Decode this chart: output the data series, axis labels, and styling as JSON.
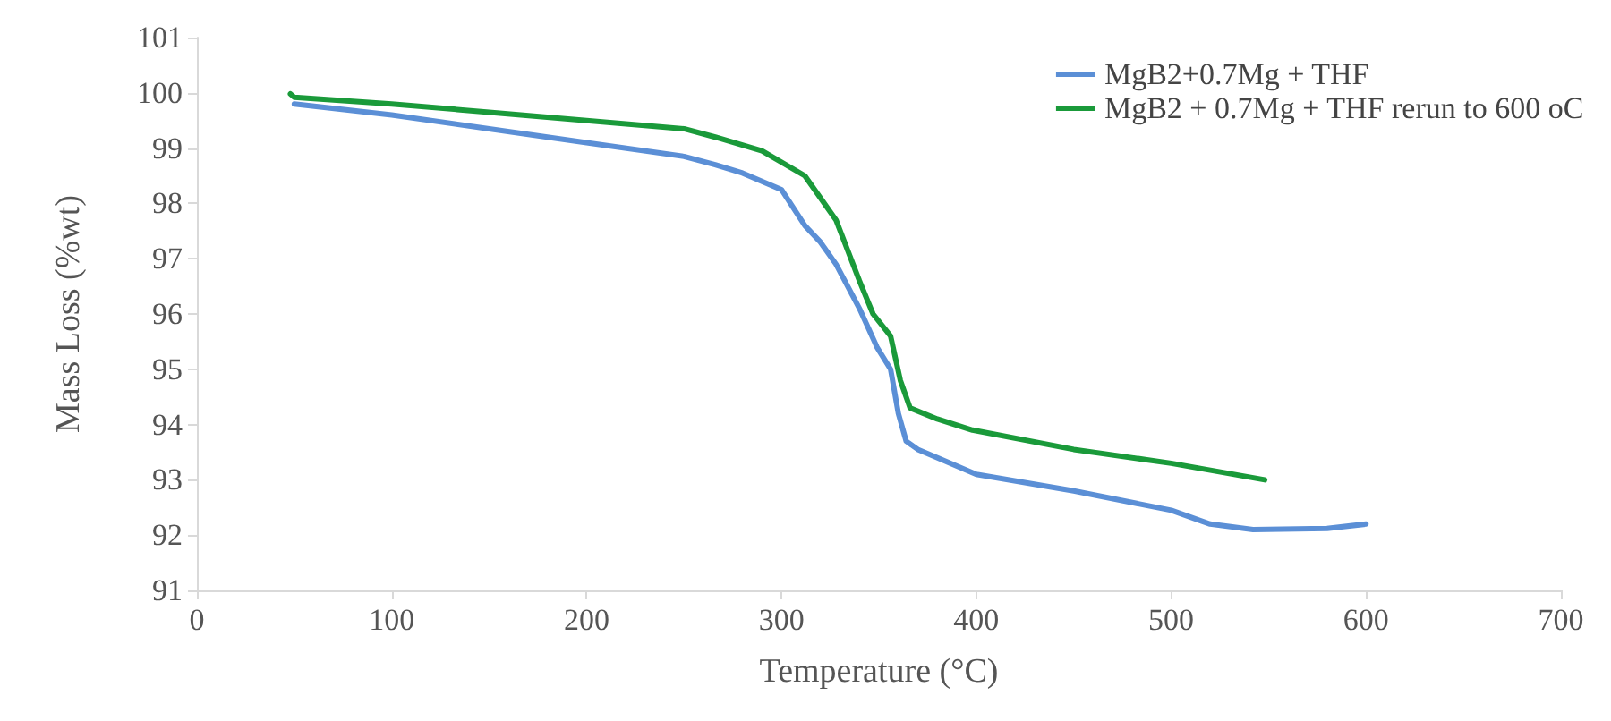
{
  "chart_data": {
    "type": "line",
    "xlabel": "Temperature (°C)",
    "ylabel": "Mass Loss (%wt)",
    "xlim": [
      0,
      700
    ],
    "xticks": [
      0,
      100,
      200,
      300,
      400,
      500,
      600,
      700
    ],
    "ylim": [
      91,
      101
    ],
    "yticks": [
      91,
      92,
      93,
      94,
      95,
      96,
      97,
      98,
      99,
      100,
      101
    ],
    "grid": false,
    "legend": "top right",
    "marker": "none",
    "line_style": "solid",
    "series": [
      {
        "name": "MgB2+0.7Mg + THF",
        "color": "#5b8fd6",
        "x": [
          50,
          100,
          150,
          200,
          250,
          266,
          280,
          300,
          312,
          320,
          328,
          340,
          349,
          356,
          360,
          364,
          370,
          400,
          450,
          500,
          520,
          542,
          580,
          600
        ],
        "values": [
          99.8,
          99.6,
          99.35,
          99.1,
          98.85,
          98.7,
          98.55,
          98.25,
          97.6,
          97.3,
          96.9,
          96.1,
          95.4,
          95.0,
          94.2,
          93.7,
          93.55,
          93.1,
          92.8,
          92.45,
          92.2,
          92.1,
          92.12,
          92.2
        ]
      },
      {
        "name": "MgB2 + 0.7Mg + THF rerun to 600 oC",
        "color": "#1a9a3a",
        "x": [
          48,
          50,
          100,
          150,
          200,
          250,
          266,
          290,
          312,
          328,
          340,
          347,
          356,
          361,
          366,
          380,
          398,
          450,
          500,
          548
        ],
        "values": [
          99.98,
          99.92,
          99.8,
          99.65,
          99.5,
          99.35,
          99.2,
          98.95,
          98.5,
          97.7,
          96.6,
          96.0,
          95.6,
          94.8,
          94.3,
          94.1,
          93.9,
          93.55,
          93.3,
          93.0
        ]
      }
    ]
  }
}
